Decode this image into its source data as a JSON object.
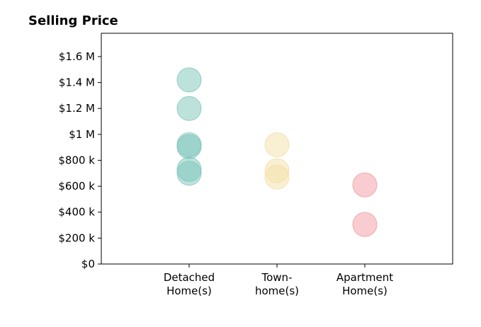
{
  "chart_data": {
    "type": "scatter",
    "title": "Selling Price",
    "xlabel": "",
    "ylabel": "",
    "categories": [
      [
        "Detached",
        "Home(s)"
      ],
      [
        "Town-",
        "home(s)"
      ],
      [
        "Apartment",
        "Home(s)"
      ]
    ],
    "y_ticks": [
      0,
      200000,
      400000,
      600000,
      800000,
      1000000,
      1200000,
      1400000,
      1600000
    ],
    "y_tick_labels": [
      "$0",
      "$200 k",
      "$400 k",
      "$600 k",
      "$800 k",
      "$1 M",
      "$1.2 M",
      "$1.4 M",
      "$1.6 M"
    ],
    "ylim": [
      0,
      1780000
    ],
    "grid": false,
    "series": [
      {
        "category_index": 0,
        "color": "#7cc5ba",
        "values": [
          1420000,
          1200000,
          920000,
          905000,
          730000,
          700000
        ]
      },
      {
        "category_index": 1,
        "color": "#f3dfa8",
        "values": [
          920000,
          720000,
          670000
        ]
      },
      {
        "category_index": 2,
        "color": "#f29aa2",
        "values": [
          610000,
          305000
        ]
      }
    ],
    "marker_alpha": 0.5
  }
}
